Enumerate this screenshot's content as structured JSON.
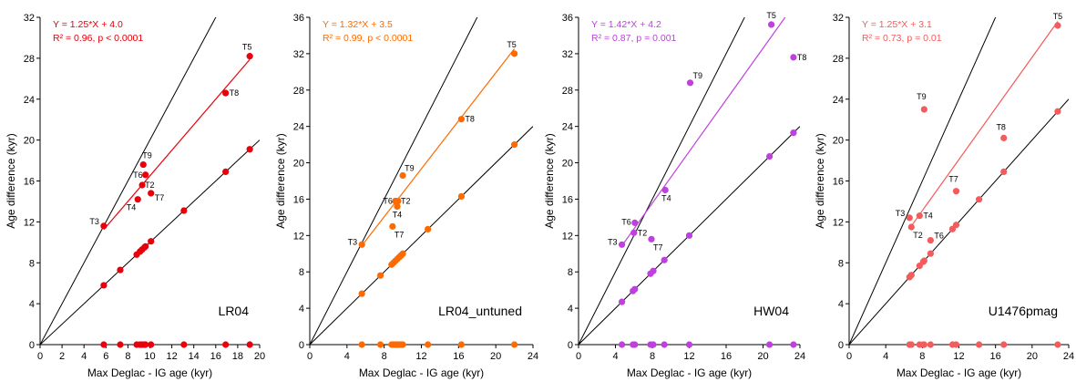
{
  "chart_data": [
    {
      "type": "scatter",
      "panel_label": "LR04",
      "color": "#e8000b",
      "xlabel": "Max Deglac - IG age (kyr)",
      "ylabel": "Age difference (kyr)",
      "xlim": [
        0,
        20
      ],
      "ylim": [
        0,
        32
      ],
      "xticks": [
        0,
        2,
        4,
        6,
        8,
        10,
        12,
        14,
        16,
        18,
        20
      ],
      "yticks": [
        0,
        4,
        8,
        12,
        16,
        20,
        24,
        28,
        32
      ],
      "equation": "Y = 1.25*X + 4.0",
      "stats": "R² = 0.96, p < 0.0001",
      "fit": {
        "slope": 1.25,
        "intercept": 4.0
      },
      "labeled_points": [
        {
          "label": "T5",
          "x": 19.1,
          "y": 28.2
        },
        {
          "label": "T8",
          "x": 16.9,
          "y": 24.6
        },
        {
          "label": "T9",
          "x": 9.4,
          "y": 17.6
        },
        {
          "label": "T6",
          "x": 9.6,
          "y": 16.6
        },
        {
          "label": "T2",
          "x": 9.3,
          "y": 15.6
        },
        {
          "label": "T7",
          "x": 10.1,
          "y": 14.8
        },
        {
          "label": "T4",
          "x": 8.9,
          "y": 14.2
        },
        {
          "label": "T3",
          "x": 5.8,
          "y": 11.6
        }
      ],
      "identity_points": [
        5.8,
        7.3,
        8.8,
        9.1,
        9.3,
        9.5,
        9.6,
        10.1,
        13.1,
        16.9,
        19.1
      ]
    },
    {
      "type": "scatter",
      "panel_label": "LR04_untuned",
      "color": "#ff6a00",
      "xlabel": "Max Deglac - IG age (kyr)",
      "ylabel": "Age difference (kyr)",
      "xlim": [
        0,
        24
      ],
      "ylim": [
        0,
        36
      ],
      "xticks": [
        0,
        4,
        8,
        12,
        16,
        20,
        24
      ],
      "yticks": [
        0,
        4,
        8,
        12,
        16,
        20,
        24,
        28,
        32,
        36
      ],
      "equation": "Y = 1.32*X + 3.5",
      "stats": "R² = 0.99, p < 0.0001",
      "fit": {
        "slope": 1.32,
        "intercept": 3.5
      },
      "labeled_points": [
        {
          "label": "T5",
          "x": 22.0,
          "y": 32.0
        },
        {
          "label": "T8",
          "x": 16.3,
          "y": 24.8
        },
        {
          "label": "T9",
          "x": 10.0,
          "y": 18.6
        },
        {
          "label": "T6",
          "x": 9.2,
          "y": 15.8
        },
        {
          "label": "T2",
          "x": 9.5,
          "y": 15.8
        },
        {
          "label": "T4",
          "x": 9.4,
          "y": 15.2
        },
        {
          "label": "T7",
          "x": 8.9,
          "y": 13.0
        },
        {
          "label": "T3",
          "x": 5.6,
          "y": 11.0
        }
      ],
      "identity_points": [
        5.6,
        7.6,
        8.8,
        9.0,
        9.2,
        9.4,
        9.6,
        9.8,
        10.0,
        12.7,
        16.3,
        22.0
      ]
    },
    {
      "type": "scatter",
      "panel_label": "HW04",
      "color": "#bf3fdf",
      "xlabel": "Max Deglac - IG age (kyr)",
      "ylabel": "Age difference (kyr)",
      "xlim": [
        0,
        24
      ],
      "ylim": [
        0,
        36
      ],
      "xticks": [
        0,
        4,
        8,
        12,
        16,
        20,
        24
      ],
      "yticks": [
        0,
        4,
        8,
        12,
        16,
        20,
        24,
        28,
        32,
        36
      ],
      "equation": "Y = 1.42*X + 4.2",
      "stats": "R² = 0.87, p = 0.001",
      "fit": {
        "slope": 1.42,
        "intercept": 4.2
      },
      "labeled_points": [
        {
          "label": "T5",
          "x": 20.9,
          "y": 35.2
        },
        {
          "label": "T8",
          "x": 23.3,
          "y": 31.6
        },
        {
          "label": "T9",
          "x": 12.1,
          "y": 28.8
        },
        {
          "label": "T4",
          "x": 9.4,
          "y": 17.0
        },
        {
          "label": "T6",
          "x": 6.1,
          "y": 13.4
        },
        {
          "label": "T2",
          "x": 6.0,
          "y": 12.3
        },
        {
          "label": "T7",
          "x": 7.9,
          "y": 11.6
        },
        {
          "label": "T3",
          "x": 4.7,
          "y": 11.0
        }
      ],
      "identity_points": [
        4.7,
        5.9,
        6.1,
        7.8,
        8.1,
        9.3,
        12.0,
        20.7,
        23.3
      ]
    },
    {
      "type": "scatter",
      "panel_label": "U1476pmag",
      "color": "#f25c5c",
      "xlabel": "Max Deglac - IG age (kyr)",
      "ylabel": "Age difference (kyr)",
      "xlim": [
        0,
        24
      ],
      "ylim": [
        0,
        32
      ],
      "xticks": [
        0,
        4,
        8,
        12,
        16,
        20,
        24
      ],
      "yticks": [
        0,
        4,
        8,
        12,
        16,
        20,
        24,
        28,
        32
      ],
      "equation": "Y = 1.25*X + 3.1",
      "stats": "R² = 0.73, p = 0.01",
      "fit": {
        "slope": 1.25,
        "intercept": 3.1
      },
      "labeled_points": [
        {
          "label": "T5",
          "x": 22.8,
          "y": 31.2
        },
        {
          "label": "T9",
          "x": 8.2,
          "y": 23.0
        },
        {
          "label": "T8",
          "x": 16.9,
          "y": 20.2
        },
        {
          "label": "T7",
          "x": 11.7,
          "y": 15.0
        },
        {
          "label": "T3",
          "x": 6.6,
          "y": 12.4
        },
        {
          "label": "T4",
          "x": 7.7,
          "y": 12.6
        },
        {
          "label": "T2",
          "x": 6.8,
          "y": 11.5
        },
        {
          "label": "T6",
          "x": 8.9,
          "y": 10.2
        }
      ],
      "identity_points": [
        6.6,
        6.8,
        7.7,
        8.1,
        8.2,
        8.9,
        11.3,
        11.7,
        14.2,
        16.9,
        22.8
      ]
    }
  ]
}
